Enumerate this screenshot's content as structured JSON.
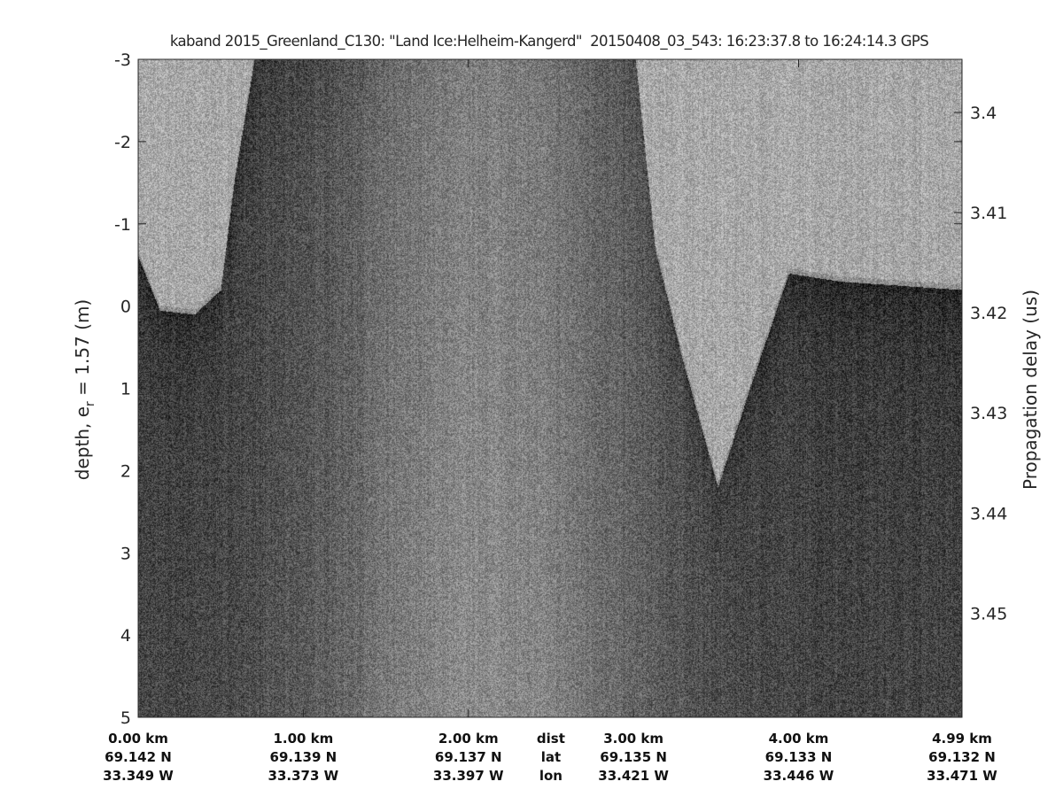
{
  "title": "kaband 2015_Greenland_C130: \"Land Ice:Helheim-Kangerd\"  20150408_03_543: 16:23:37.8 to 16:24:14.3 GPS",
  "chart_data": {
    "type": "heatmap",
    "colormap": "gray",
    "title": "kaband 2015_Greenland_C130: \"Land Ice:Helheim-Kangerd\"  20150408_03_543: 16:23:37.8 to 16:24:14.3 GPS",
    "ylabel_left": "depth, e",
    "ylabel_left_sub": "r",
    "ylabel_left_tail": " = 1.57 (m)",
    "ylabel_right": "Propagation delay (us)",
    "ylim_left": [
      -3,
      5
    ],
    "yticks_left": [
      "-3",
      "-2",
      "-1",
      "0",
      "1",
      "2",
      "3",
      "4",
      "5"
    ],
    "ylim_right": [
      3.3947,
      3.4604
    ],
    "yticks_right": [
      "3.4",
      "3.41",
      "3.42",
      "3.43",
      "3.44",
      "3.45"
    ],
    "xlim_km": [
      0,
      4.99
    ],
    "x_columns": [
      {
        "dist": "0.00 km",
        "lat": "69.142 N",
        "lon": "33.349 W",
        "km": 0
      },
      {
        "dist": "1.00 km",
        "lat": "69.139 N",
        "lon": "33.373 W",
        "km": 1
      },
      {
        "dist": "2.00 km",
        "lat": "69.137 N",
        "lon": "33.397 W",
        "km": 2
      },
      {
        "dist": "3.00 km",
        "lat": "69.135 N",
        "lon": "33.421 W",
        "km": 3
      },
      {
        "dist": "4.00 km",
        "lat": "69.133 N",
        "lon": "33.446 W",
        "km": 4
      },
      {
        "dist": "4.99 km",
        "lat": "69.132 N",
        "lon": "33.471 W",
        "km": 4.99
      }
    ],
    "row_labels": {
      "dist": "dist",
      "lat": "lat",
      "lon": "lon"
    },
    "surface_boundary": {
      "km": [
        0.0,
        0.13,
        0.34,
        0.5,
        0.58,
        0.72,
        3.0,
        3.13,
        3.29,
        3.51,
        3.72,
        3.94,
        4.26,
        4.99
      ],
      "depth": [
        -0.6,
        0.05,
        0.1,
        -0.2,
        -1.5,
        -3.2,
        -3.2,
        -0.7,
        0.6,
        2.2,
        0.9,
        -0.4,
        -0.3,
        -0.2
      ]
    }
  }
}
